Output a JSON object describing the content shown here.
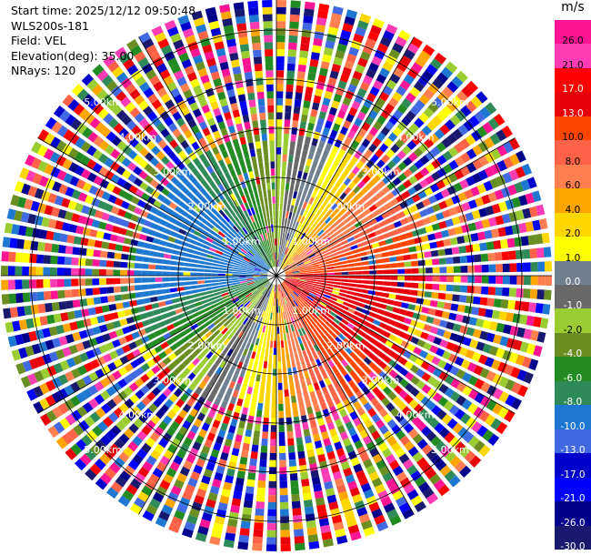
{
  "info": {
    "start_time": "Start time: 2025/12/12 09:50:48",
    "instrument": "WLS200s-181",
    "field": "Field: VEL",
    "elevation": "Elevation(deg): 35.00",
    "nrays": "NRays: 120"
  },
  "colorbar": {
    "unit": "m/s",
    "labels": [
      "26.0",
      "21.0",
      "17.0",
      "13.0",
      "10.0",
      "8.0",
      "6.0",
      "4.0",
      "2.0",
      "1.0",
      "0.0",
      "-1.0",
      "-2.0",
      "-4.0",
      "-6.0",
      "-8.0",
      "-10.0",
      "-13.0",
      "-17.0",
      "-21.0",
      "-26.0",
      "-30.0"
    ],
    "colors": [
      "#ff1493",
      "#ff3cb4",
      "#ff0000",
      "#e8000a",
      "#ff4500",
      "#ff6347",
      "#ff7f50",
      "#ffa500",
      "#ffd700",
      "#ffff00",
      "#708090",
      "#696969",
      "#9acd32",
      "#6b8e23",
      "#228b22",
      "#2e8b57",
      "#1e78d2",
      "#4169e1",
      "#0000cd",
      "#0000ff",
      "#00008b",
      "#191970"
    ]
  },
  "chart_data": {
    "type": "ppi",
    "field": "VEL",
    "unit": "m/s",
    "nrays": 120,
    "elevation_deg": 35.0,
    "range_rings_km": [
      "1.00km",
      "2.00km",
      "3.00km",
      "4.00km",
      "5.00km"
    ],
    "azimuth_spokes_deg": [
      0,
      30,
      60,
      90,
      120,
      150,
      180,
      210,
      240,
      270,
      300,
      330
    ]
  }
}
